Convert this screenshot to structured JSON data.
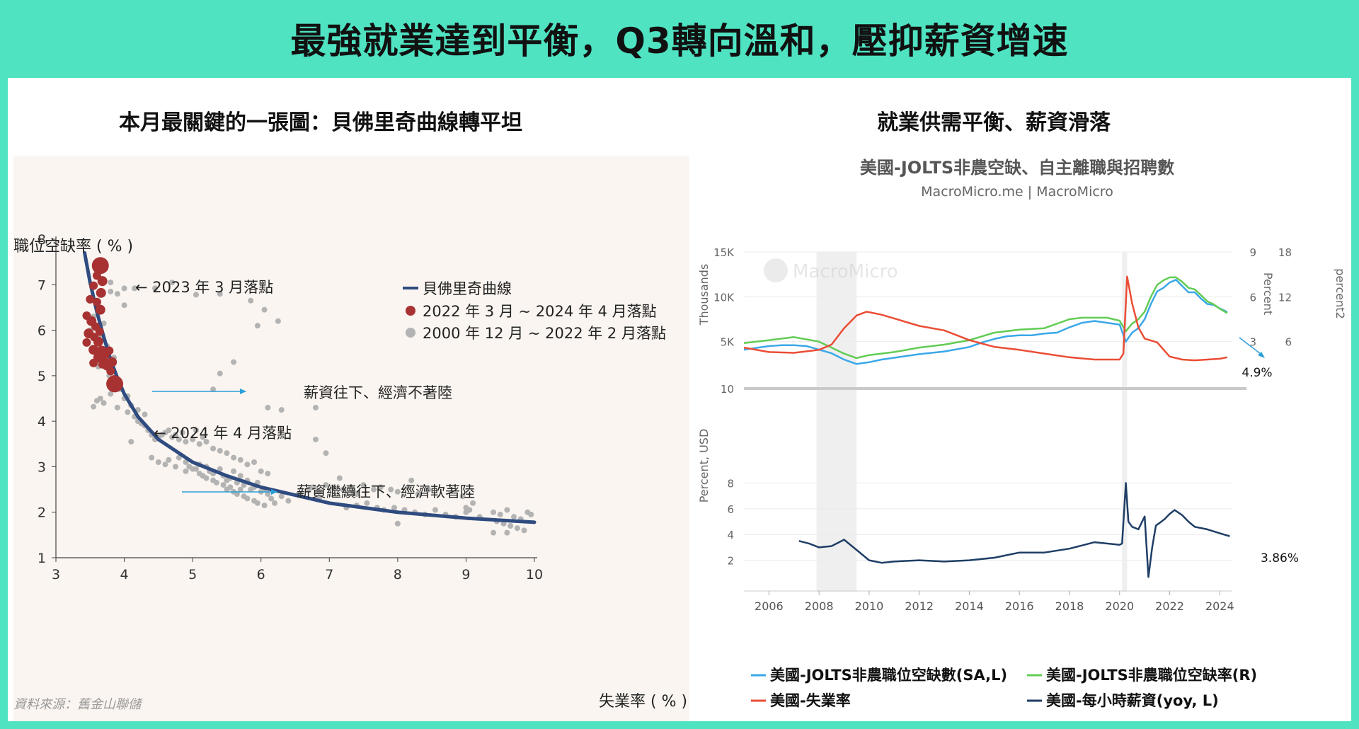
{
  "banner": {
    "title": "最強就業達到平衡，Q3轉向溫和，壓抑薪資增速"
  },
  "left": {
    "title": "本月最關鍵的一張圖：貝佛里奇曲線轉平坦",
    "source": "資料來源：舊金山聯儲",
    "annotations": [
      {
        "text": "← 2023 年 3 月落點"
      },
      {
        "text": "← 2024 年 4 月落點"
      },
      {
        "text": "薪資往下、經濟不著陸"
      },
      {
        "text": "薪資繼續往下、經濟軟著陸"
      }
    ]
  },
  "right": {
    "title": "就業供需平衡、薪資滑落",
    "chart_title": "美國-JOLTS非農空缺、自主離職與招聘數",
    "chart_subtitle": "MacroMicro.me | MacroMicro",
    "watermark": "MacroMicro",
    "value_labels": {
      "jolts_rate_last": "4.9%",
      "wages_last": "3.86%"
    }
  },
  "colors": {
    "banner": "#4fe3c2",
    "beveridge_curve": "#2f4b80",
    "recent_points": "#a83232",
    "historical_points": "#b3b3b3",
    "openings": "#3aa8e8",
    "openings_rate": "#63cc55",
    "unemployment": "#ea4d35",
    "wages": "#1f3e66",
    "arrow": "#2a9fd8"
  },
  "chart_data": [
    {
      "type": "scatter",
      "title": "",
      "xlabel": "失業率 ( % )",
      "ylabel": "職位空缺率 ( % )",
      "xlim": [
        3,
        10
      ],
      "ylim": [
        1,
        8
      ],
      "xticks": [
        3,
        4,
        5,
        6,
        7,
        8,
        9,
        10
      ],
      "yticks": [
        1,
        2,
        3,
        4,
        5,
        6,
        7,
        8
      ],
      "legend": "top-center",
      "series": [
        {
          "name": "貝佛里奇曲線",
          "kind": "line",
          "x": [
            3.42,
            3.5,
            3.6,
            3.7,
            3.8,
            3.9,
            4.0,
            4.2,
            4.5,
            5.0,
            5.5,
            6.0,
            7.0,
            8.0,
            9.0,
            10.0
          ],
          "y": [
            7.7,
            7.05,
            6.4,
            5.85,
            5.35,
            4.95,
            4.6,
            4.1,
            3.6,
            3.1,
            2.8,
            2.55,
            2.2,
            2.0,
            1.87,
            1.78
          ]
        },
        {
          "name": "2022 年 3 月 ~ 2024 年 4 月落點",
          "kind": "points",
          "x": [
            3.65,
            3.6,
            3.68,
            3.55,
            3.66,
            3.5,
            3.6,
            3.65,
            3.45,
            3.52,
            3.58,
            3.64,
            3.48,
            3.56,
            3.62,
            3.45,
            3.55,
            3.67,
            3.72,
            3.62,
            3.7,
            3.78,
            3.82,
            3.55,
            3.68,
            3.75,
            3.8,
            3.85,
            3.86
          ],
          "y": [
            7.42,
            7.2,
            7.08,
            6.98,
            6.82,
            6.68,
            6.62,
            6.45,
            6.32,
            6.2,
            6.08,
            5.97,
            5.93,
            5.85,
            5.75,
            5.73,
            5.57,
            5.55,
            5.45,
            5.4,
            5.35,
            5.55,
            5.3,
            5.28,
            5.25,
            5.22,
            5.1,
            4.92,
            4.82
          ],
          "sizes": [
            12,
            6,
            7,
            6,
            7,
            6,
            6,
            7,
            6,
            7,
            6,
            6,
            7,
            6,
            7,
            6,
            7,
            7,
            6,
            7,
            6,
            6,
            7,
            6,
            6,
            7,
            6,
            6,
            12
          ]
        },
        {
          "name": "2000 年 12 月 ~ 2022 年 2 月落點",
          "kind": "points",
          "x": [
            3.8,
            4.0,
            4.15,
            4.45,
            4.7,
            5.05,
            5.4,
            5.85,
            5.95,
            6.05,
            6.25,
            6.8,
            3.55,
            3.6,
            3.65,
            3.7,
            3.8,
            3.9,
            3.95,
            4.05,
            4.0,
            4.15,
            4.2,
            4.25,
            4.3,
            4.1,
            4.35,
            4.4,
            4.45,
            4.5,
            4.55,
            4.6,
            4.65,
            4.7,
            4.75,
            4.8,
            4.85,
            4.9,
            5.0,
            5.05,
            5.1,
            5.15,
            5.2,
            4.4,
            4.5,
            4.6,
            4.65,
            4.75,
            4.8,
            4.9,
            5.0,
            5.1,
            5.2,
            5.25,
            5.3,
            5.4,
            5.45,
            5.5,
            5.55,
            5.6,
            5.65,
            5.7,
            5.75,
            5.8,
            5.85,
            5.9,
            5.95,
            6.0,
            6.05,
            6.1,
            6.15,
            5.3,
            5.4,
            5.5,
            5.6,
            5.7,
            5.8,
            5.9,
            6.0,
            6.1,
            4.9,
            4.95,
            5.05,
            5.1,
            5.15,
            5.2,
            5.25,
            5.3,
            5.35,
            5.45,
            5.5,
            5.55,
            5.6,
            5.65,
            5.7,
            5.75,
            5.8,
            5.9,
            5.95,
            6.05,
            6.2,
            6.3,
            6.4,
            6.55,
            6.7,
            6.75,
            6.85,
            6.95,
            6.85,
            7.05,
            7.2,
            7.35,
            7.5,
            7.65,
            7.75,
            7.9,
            8.0,
            8.15,
            8.3,
            8.45,
            7.25,
            7.4,
            7.55,
            7.7,
            7.8,
            7.95,
            8.1,
            8.25,
            8.4,
            8.55,
            8.7,
            8.85,
            9.0,
            9.05,
            9.0,
            9.1,
            8.95,
            9.4,
            9.5,
            9.6,
            9.7,
            9.8,
            9.9,
            9.95,
            9.45,
            9.55,
            9.65,
            9.75,
            9.85,
            9.4,
            5.6,
            5.4,
            5.3,
            6.1,
            6.3,
            3.8,
            3.9,
            4.0,
            3.55,
            3.6,
            3.7,
            3.5,
            3.65,
            3.75,
            3.85,
            3.62,
            3.78,
            3.92,
            4.05,
            4.1,
            4.2,
            4.3,
            6.8,
            6.95,
            7.15,
            7.4,
            8.0,
            9.2,
            9.6,
            8.2
          ],
          "y": [
            7.05,
            6.92,
            6.92,
            6.92,
            7.05,
            6.78,
            6.8,
            6.65,
            6.1,
            6.45,
            6.2,
            4.3,
            4.32,
            4.45,
            4.5,
            4.4,
            4.6,
            4.3,
            4.7,
            4.2,
            4.5,
            4.1,
            4.0,
            3.95,
            3.9,
            3.55,
            3.8,
            3.7,
            3.6,
            3.65,
            3.7,
            3.75,
            3.8,
            3.65,
            3.7,
            3.6,
            3.75,
            3.55,
            3.6,
            3.8,
            3.5,
            3.65,
            3.55,
            3.2,
            3.1,
            3.05,
            3.15,
            3.0,
            3.2,
            3.1,
            2.95,
            3.05,
            3.0,
            2.9,
            2.85,
            2.95,
            2.8,
            2.7,
            2.75,
            2.9,
            2.65,
            2.8,
            2.6,
            2.7,
            2.5,
            2.55,
            2.65,
            2.45,
            2.5,
            2.4,
            2.3,
            3.4,
            3.35,
            3.3,
            3.2,
            3.15,
            3.05,
            3.1,
            2.9,
            2.85,
            2.9,
            3.0,
            2.95,
            2.85,
            2.8,
            2.75,
            2.9,
            2.7,
            2.65,
            2.6,
            2.5,
            2.55,
            2.45,
            2.4,
            2.5,
            2.35,
            2.3,
            2.25,
            2.2,
            2.15,
            2.2,
            2.35,
            2.25,
            2.4,
            2.5,
            2.55,
            2.45,
            2.6,
            2.3,
            2.55,
            2.5,
            2.45,
            2.6,
            2.5,
            2.55,
            2.5,
            2.45,
            2.55,
            2.4,
            2.5,
            2.1,
            2.15,
            2.2,
            2.1,
            2.05,
            2.1,
            2.05,
            2.0,
            1.95,
            2.05,
            1.95,
            1.9,
            2.0,
            2.05,
            2.1,
            2.2,
            2.35,
            2.0,
            1.95,
            2.05,
            1.9,
            1.85,
            2.0,
            1.95,
            1.8,
            1.75,
            1.7,
            1.65,
            1.6,
            1.55,
            5.3,
            5.05,
            4.7,
            4.3,
            4.25,
            6.85,
            6.8,
            6.55,
            6.3,
            6.5,
            6.15,
            6.0,
            5.9,
            5.65,
            5.4,
            5.2,
            5.0,
            4.85,
            4.55,
            4.35,
            4.25,
            4.15,
            3.6,
            3.3,
            2.75,
            2.4,
            1.75,
            1.9,
            1.55,
            2.7
          ],
          "sizes": [
            4
          ]
        }
      ]
    },
    {
      "type": "line",
      "title": "美國-JOLTS非農空缺、自主離職與招聘數",
      "subtitle": "MacroMicro.me | MacroMicro",
      "x_range": [
        2005.0,
        2024.5
      ],
      "xticks": [
        "2006",
        "2008",
        "2010",
        "2012",
        "2014",
        "2016",
        "2018",
        "2020",
        "2022",
        "2024"
      ],
      "recessions": [
        [
          2007.9,
          2009.5
        ],
        [
          2020.1,
          2020.3
        ]
      ],
      "upper_panel": {
        "left_axis": {
          "label": "Thousands",
          "ticks": [
            "5K",
            "10K",
            "15K"
          ],
          "range": [
            0,
            15000
          ]
        },
        "right_axis_1": {
          "label": "Percent",
          "ticks": [
            "3",
            "6",
            "9"
          ],
          "range": [
            0,
            9
          ]
        },
        "right_axis_2": {
          "label": "percent2",
          "ticks": [
            "6",
            "12",
            "18"
          ],
          "range": [
            0,
            18
          ]
        },
        "series": [
          {
            "name": "美國-JOLTS非農職位空缺數(SA,L)",
            "axis": "left",
            "x": [
              2005.0,
              2005.5,
              2006.0,
              2006.5,
              2007.0,
              2007.5,
              2008.0,
              2008.5,
              2009.0,
              2009.5,
              2010.0,
              2010.5,
              2011.0,
              2012.0,
              2013.0,
              2014.0,
              2014.5,
              2015.0,
              2015.5,
              2016.0,
              2016.5,
              2017.0,
              2017.5,
              2018.0,
              2018.5,
              2019.0,
              2019.5,
              2020.0,
              2020.25,
              2020.5,
              2020.75,
              2021.0,
              2021.25,
              2021.5,
              2021.75,
              2022.0,
              2022.25,
              2022.5,
              2022.75,
              2023.0,
              2023.25,
              2023.5,
              2023.75,
              2024.0,
              2024.3
            ],
            "y": [
              4100,
              4300,
              4500,
              4600,
              4600,
              4500,
              4100,
              3700,
              3000,
              2500,
              2700,
              3000,
              3200,
              3600,
              3900,
              4400,
              4900,
              5300,
              5600,
              5700,
              5700,
              5900,
              6000,
              6600,
              7100,
              7300,
              7100,
              6900,
              5000,
              6000,
              6500,
              7500,
              9200,
              10600,
              11000,
              11600,
              11900,
              11200,
              10500,
              10500,
              9800,
              9200,
              9100,
              8700,
              8300
            ]
          },
          {
            "name": "美國-JOLTS非農職位空缺率(R)",
            "axis": "right_1",
            "x": [
              2005.0,
              2006.0,
              2007.0,
              2008.0,
              2009.0,
              2009.5,
              2010.0,
              2011.0,
              2012.0,
              2013.0,
              2014.0,
              2015.0,
              2016.0,
              2017.0,
              2018.0,
              2018.5,
              2019.0,
              2019.5,
              2020.0,
              2020.25,
              2020.5,
              2020.75,
              2021.0,
              2021.25,
              2021.5,
              2021.75,
              2022.0,
              2022.25,
              2022.5,
              2022.75,
              2023.0,
              2023.25,
              2023.5,
              2023.75,
              2024.0,
              2024.3
            ],
            "y": [
              2.9,
              3.1,
              3.3,
              3.0,
              2.2,
              1.9,
              2.1,
              2.3,
              2.6,
              2.8,
              3.1,
              3.6,
              3.8,
              3.9,
              4.5,
              4.6,
              4.6,
              4.6,
              4.4,
              3.7,
              4.2,
              4.5,
              5.0,
              6.0,
              6.8,
              7.1,
              7.3,
              7.3,
              7.0,
              6.6,
              6.5,
              6.1,
              5.7,
              5.5,
              5.2,
              4.9
            ]
          },
          {
            "name": "美國-失業率",
            "axis": "right_2",
            "x": [
              2005.0,
              2006.0,
              2007.0,
              2008.0,
              2008.5,
              2009.0,
              2009.5,
              2009.9,
              2010.5,
              2011.0,
              2012.0,
              2013.0,
              2014.0,
              2015.0,
              2016.0,
              2017.0,
              2018.0,
              2019.0,
              2020.0,
              2020.15,
              2020.3,
              2020.5,
              2020.75,
              2021.0,
              2021.5,
              2022.0,
              2022.5,
              2023.0,
              2023.5,
              2024.0,
              2024.3
            ],
            "y": [
              5.2,
              4.6,
              4.5,
              4.9,
              5.6,
              7.8,
              9.5,
              10.0,
              9.6,
              9.1,
              8.1,
              7.5,
              6.2,
              5.3,
              4.9,
              4.4,
              3.9,
              3.6,
              3.6,
              4.4,
              14.7,
              11.1,
              7.9,
              6.4,
              5.9,
              4.0,
              3.6,
              3.5,
              3.6,
              3.7,
              3.9
            ]
          }
        ]
      },
      "lower_panel": {
        "left_axis": {
          "label": "Percent, USD",
          "ticks": [
            "2",
            "4",
            "6",
            "8"
          ],
          "top_label": "10",
          "range": [
            0,
            10
          ]
        },
        "series": [
          {
            "name": "美國-每小時薪資(yoy, L)",
            "axis": "left",
            "x": [
              2007.2,
              2007.6,
              2008.0,
              2008.5,
              2009.0,
              2009.5,
              2010.0,
              2010.5,
              2011.0,
              2012.0,
              2013.0,
              2014.0,
              2015.0,
              2016.0,
              2017.0,
              2018.0,
              2019.0,
              2020.0,
              2020.1,
              2020.25,
              2020.35,
              2020.5,
              2020.75,
              2021.0,
              2021.15,
              2021.3,
              2021.45,
              2021.6,
              2021.8,
              2022.0,
              2022.2,
              2022.5,
              2022.75,
              2023.0,
              2023.5,
              2024.0,
              2024.4
            ],
            "y": [
              3.5,
              3.3,
              3.0,
              3.1,
              3.6,
              2.8,
              2.0,
              1.8,
              1.9,
              2.0,
              1.9,
              2.0,
              2.2,
              2.6,
              2.6,
              2.9,
              3.4,
              3.2,
              3.3,
              8.0,
              5.0,
              4.6,
              4.4,
              5.4,
              0.7,
              3.0,
              4.7,
              4.9,
              5.2,
              5.6,
              5.9,
              5.5,
              5.0,
              4.6,
              4.4,
              4.1,
              3.86
            ]
          }
        ]
      },
      "legend": "bottom",
      "legend_entries": [
        "美國-JOLTS非農職位空缺數(SA,L)",
        "美國-JOLTS非農職位空缺率(R)",
        "美國-失業率",
        "美國-每小時薪資(yoy, L)"
      ]
    }
  ]
}
